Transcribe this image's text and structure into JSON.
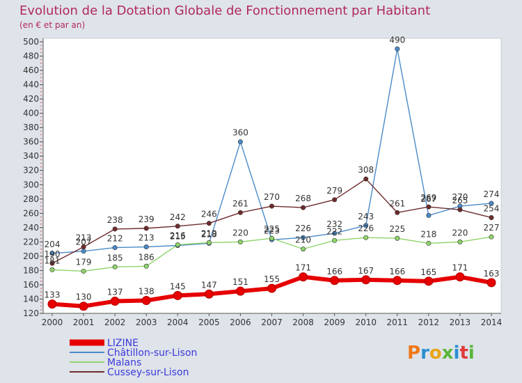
{
  "chart_data": {
    "type": "line",
    "title": "Evolution de la Dotation Globale de Fonctionnement par Habitant",
    "subtitle": "(en € et par an)",
    "x": [
      "2000",
      "2001",
      "2002",
      "2003",
      "2004",
      "2005",
      "2006",
      "2007",
      "2008",
      "2009",
      "2010",
      "2011",
      "2012",
      "2013",
      "2014"
    ],
    "ylim": [
      120,
      500
    ],
    "yticks": [
      120,
      140,
      160,
      180,
      200,
      220,
      240,
      260,
      280,
      300,
      320,
      340,
      360,
      380,
      400,
      420,
      440,
      460,
      480,
      500
    ],
    "grid": false,
    "legend_position": "bottom-left",
    "series": [
      {
        "name": "LIZINE",
        "color": "#e60000",
        "values": [
          133,
          130,
          137,
          138,
          145,
          147,
          151,
          155,
          171,
          166,
          167,
          166,
          165,
          171,
          163
        ],
        "labels": [
          "133",
          "130",
          "137",
          "138",
          "145",
          "147",
          "151",
          "155",
          "171",
          "166",
          "167",
          "166",
          "165",
          "171",
          "163"
        ]
      },
      {
        "name": "Châtillon-sur-Lison",
        "color": "#4a8ac8",
        "values": [
          204,
          207,
          212,
          213,
          215,
          218,
          360,
          223,
          226,
          232,
          243,
          490,
          257,
          270,
          274
        ],
        "labels": [
          "204",
          "207",
          "212",
          "213",
          "215",
          "218",
          "360",
          "223",
          "226",
          "232",
          "243",
          "490",
          "",
          "270",
          "274"
        ]
      },
      {
        "name": "Malans",
        "color": "#8fd46a",
        "values": [
          181,
          179,
          185,
          186,
          216,
          219,
          220,
          225,
          210,
          222,
          226,
          225,
          218,
          220,
          227
        ],
        "labels": [
          "181",
          "179",
          "185",
          "186",
          "216",
          "219",
          "220",
          "225",
          "210",
          "222",
          "226",
          "225",
          "218",
          "220",
          "227"
        ]
      },
      {
        "name": "Cussey-sur-Lison",
        "color": "#6e2b2b",
        "values": [
          190,
          213,
          238,
          239,
          242,
          246,
          261,
          270,
          268,
          279,
          308,
          261,
          269,
          265,
          254
        ],
        "labels": [
          "190",
          "213",
          "238",
          "239",
          "242",
          "246",
          "261",
          "270",
          "268",
          "279",
          "308",
          "261",
          "269",
          "265",
          "254"
        ]
      }
    ],
    "extra_labels": [
      {
        "text": "267",
        "series": 2,
        "x": "2012",
        "value": 267
      }
    ]
  },
  "brand": {
    "text": "Proxiti",
    "letter_colors": [
      "#f07818",
      "#2a8fd0",
      "#e8a51a",
      "#5ab53a",
      "#2a8fd0",
      "#e03a3a",
      "#5ab53a"
    ]
  }
}
